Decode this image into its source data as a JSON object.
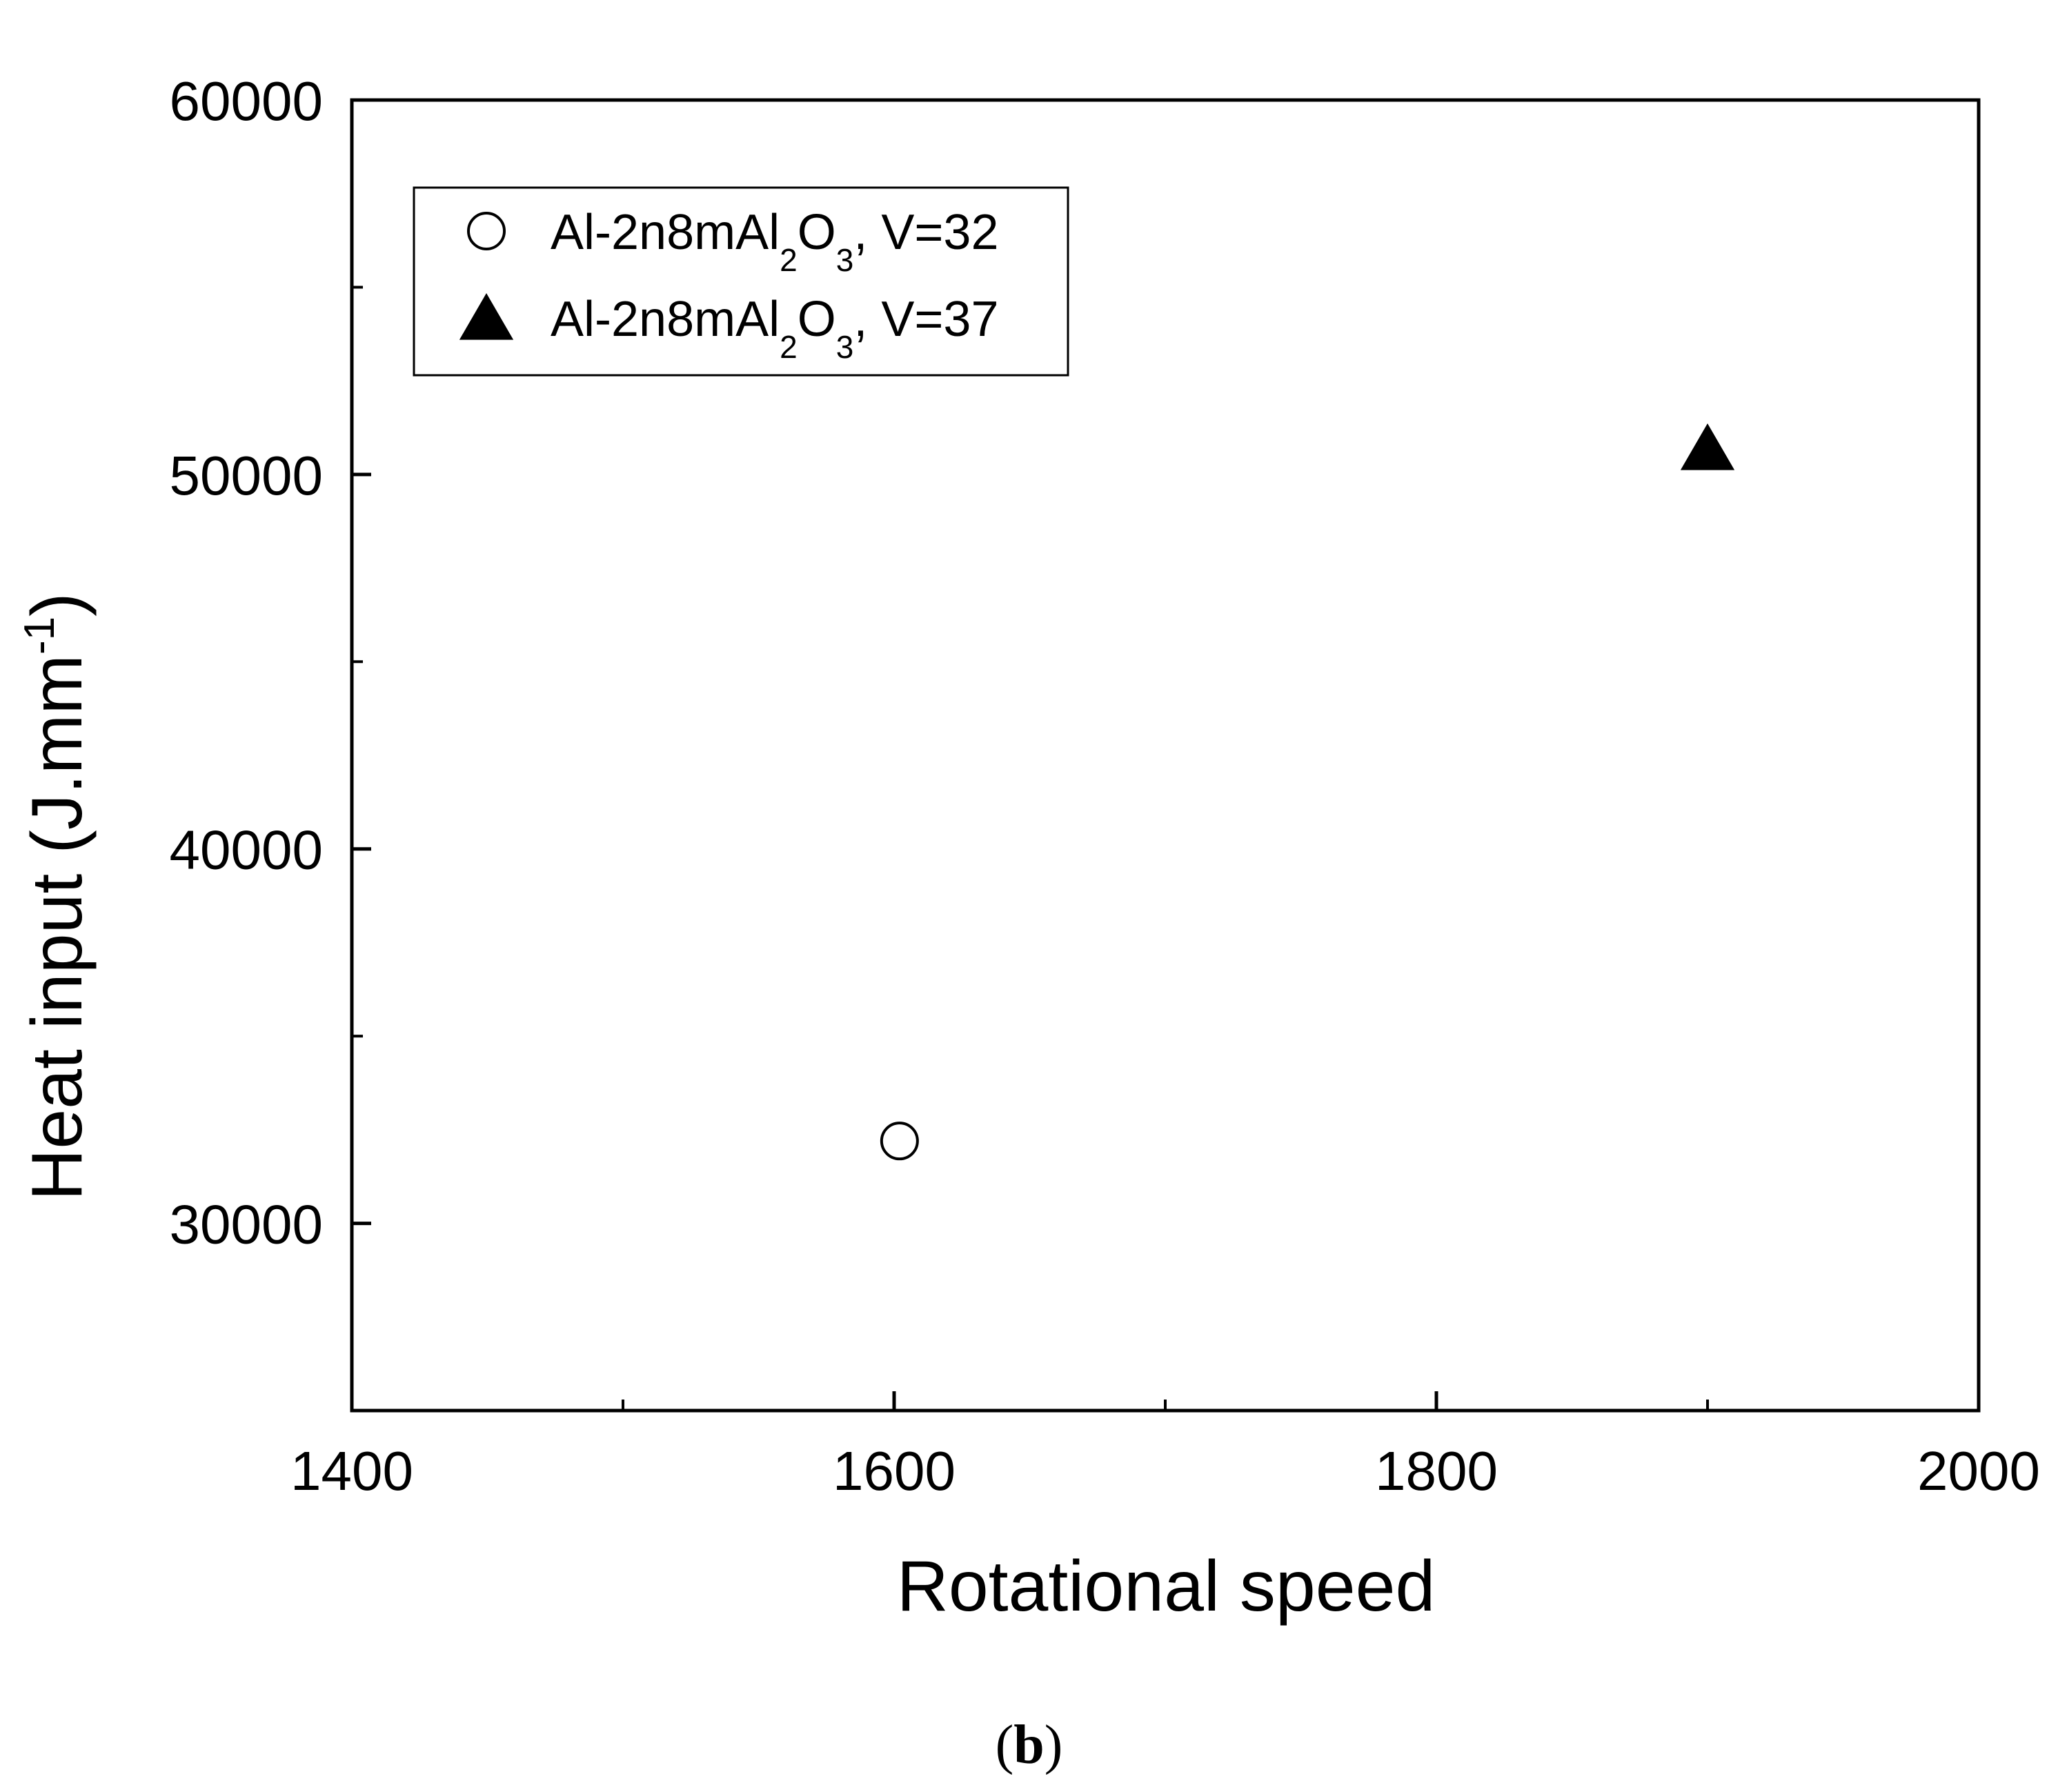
{
  "chart_data": {
    "type": "scatter",
    "xlabel": "Rotational speed",
    "ylabel": "Heat input (J.mm",
    "ylabel_sup": "-1",
    "ylabel_close": ")",
    "xlim": [
      1400,
      2000
    ],
    "ylim": [
      25000,
      60000
    ],
    "x_ticks_major": [
      1400,
      1600,
      1800,
      2000
    ],
    "x_ticks_minor": [
      1500,
      1700,
      1900
    ],
    "y_ticks_major": [
      30000,
      40000,
      50000,
      60000
    ],
    "y_ticks_minor": [
      35000,
      45000,
      55000
    ],
    "tick_labels_x": [
      "1400",
      "1600",
      "1800",
      "2000"
    ],
    "tick_labels_y": [
      "30000",
      "40000",
      "50000",
      "60000"
    ],
    "grid": false,
    "legend_position": "top-left",
    "series": [
      {
        "name": "Al-2n8mAl2O3, V=32",
        "legend_main": "Al-2n8mAl",
        "legend_sub1": "2",
        "legend_mid": "O",
        "legend_sub2": "3",
        "legend_tail": ", V=32",
        "marker": "open-circle",
        "x": [
          1602
        ],
        "y": [
          32200
        ]
      },
      {
        "name": "Al-2n8mAl2O3, V=37",
        "legend_main": "Al-2n8mAl",
        "legend_sub1": "2",
        "legend_mid": "O",
        "legend_sub2": "3",
        "legend_tail": ", V=37",
        "marker": "filled-triangle",
        "x": [
          1900
        ],
        "y": [
          50700
        ]
      }
    ]
  },
  "panel_label": {
    "open": "(",
    "letter": "b",
    "close": ")"
  }
}
